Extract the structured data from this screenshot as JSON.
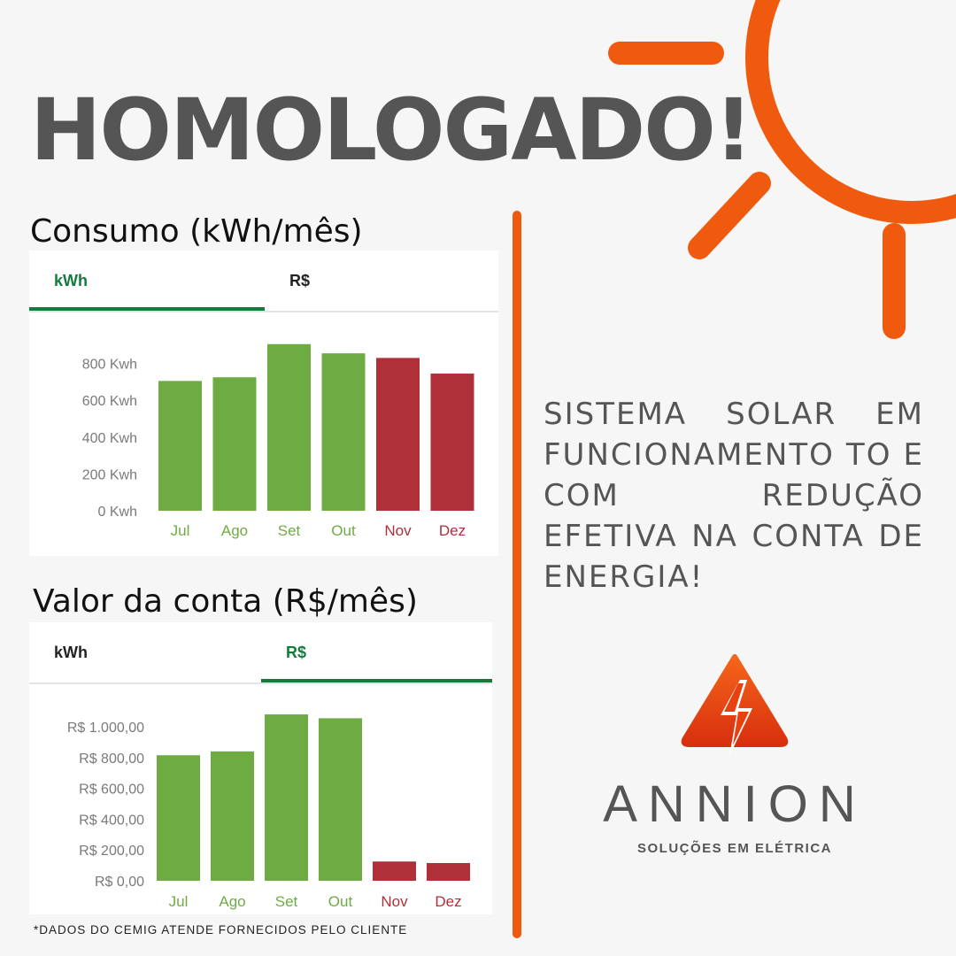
{
  "headline": "HOMOLOGADO!",
  "colors": {
    "accent": "#f05a0f",
    "green": "#6fab43",
    "red": "#b0303a",
    "tab_active": "#157a3c",
    "text_gray": "#555555"
  },
  "charts_section": {
    "consumption_title": "Consumo (kWh/mês)",
    "bill_title": "Valor da conta (R$/mês)"
  },
  "tabs": {
    "kwh_label": "kWh",
    "rs_label": "R$"
  },
  "description": "SISTEMA SOLAR EM FUNCIONAMENTO TO E COM REDUÇÃO EFETIVA NA CONTA DE ENERGIA!",
  "logo": {
    "icon": "lightning-triangle-icon",
    "brand": "ANNION",
    "tagline": "SOLUÇÕES EM ELÉTRICA"
  },
  "footnote": "*DADOS DO CEMIG ATENDE FORNECIDOS PELO CLIENTE",
  "chart_data": [
    {
      "type": "bar",
      "active_tab": "kWh",
      "categories": [
        "Jul",
        "Ago",
        "Set",
        "Out",
        "Nov",
        "Dez"
      ],
      "values": [
        705,
        725,
        905,
        855,
        830,
        745
      ],
      "bar_colors": [
        "#6fab43",
        "#6fab43",
        "#6fab43",
        "#6fab43",
        "#b0303a",
        "#b0303a"
      ],
      "category_label_colors": [
        "#6fab43",
        "#6fab43",
        "#6fab43",
        "#6fab43",
        "#b0303a",
        "#b0303a"
      ],
      "yticks": [
        0,
        200,
        400,
        600,
        800
      ],
      "ytick_labels": [
        "0 Kwh",
        "200 Kwh",
        "400 Kwh",
        "600 Kwh",
        "800 Kwh"
      ],
      "ylim": [
        0,
        1000
      ],
      "grid": false
    },
    {
      "type": "bar",
      "active_tab": "R$",
      "categories": [
        "Jul",
        "Ago",
        "Set",
        "Out",
        "Nov",
        "Dez"
      ],
      "values": [
        815,
        840,
        1080,
        1055,
        125,
        115
      ],
      "bar_colors": [
        "#6fab43",
        "#6fab43",
        "#6fab43",
        "#6fab43",
        "#b0303a",
        "#b0303a"
      ],
      "category_label_colors": [
        "#6fab43",
        "#6fab43",
        "#6fab43",
        "#6fab43",
        "#b0303a",
        "#b0303a"
      ],
      "yticks": [
        0,
        200,
        400,
        600,
        800,
        1000
      ],
      "ytick_labels": [
        "R$ 0,00",
        "R$ 200,00",
        "R$ 400,00",
        "R$ 600,00",
        "R$ 800,00",
        "R$ 1.000,00"
      ],
      "ylim": [
        0,
        1150
      ],
      "grid": false
    }
  ]
}
